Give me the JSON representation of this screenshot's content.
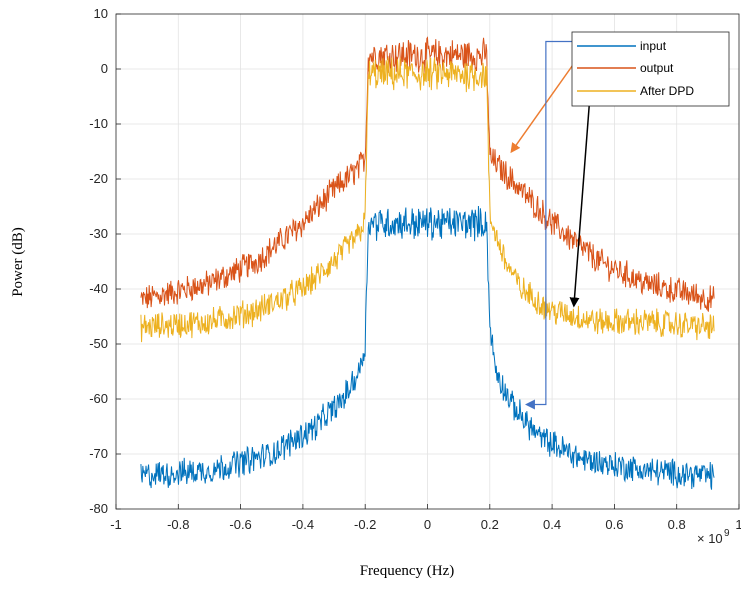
{
  "chart_data": {
    "type": "line",
    "title": "",
    "xlabel": "Frequency (Hz)",
    "ylabel": "Power (dB)",
    "x_exponent_label": "× 10",
    "x_exponent_power": "9",
    "xlim": [
      -1,
      1
    ],
    "ylim": [
      -80,
      10
    ],
    "xticks": [
      -1,
      -0.8,
      -0.6,
      -0.4,
      -0.2,
      0,
      0.2,
      0.4,
      0.6,
      0.8,
      1
    ],
    "xtick_labels": [
      "-1",
      "-0.8",
      "-0.6",
      "-0.4",
      "-0.2",
      "0",
      "0.2",
      "0.4",
      "0.6",
      "0.8",
      "1"
    ],
    "yticks": [
      10,
      0,
      -10,
      -20,
      -30,
      -40,
      -50,
      -60,
      -70,
      -80
    ],
    "ytick_labels": [
      "10",
      "0",
      "-10",
      "-20",
      "-30",
      "-40",
      "-50",
      "-60",
      "-70",
      "-80"
    ],
    "grid": true,
    "legend_position": "top-right",
    "x_range_data": [
      -0.92,
      0.92
    ],
    "band_edge": 0.19,
    "series": [
      {
        "name": "input",
        "color": "#0072BD",
        "noise_amplitude": 2.2,
        "in_band_level": -27,
        "points": [
          [
            -0.92,
            -74
          ],
          [
            -0.7,
            -73
          ],
          [
            -0.5,
            -70
          ],
          [
            -0.36,
            -65
          ],
          [
            -0.27,
            -60
          ],
          [
            -0.22,
            -55
          ],
          [
            -0.2,
            -50
          ],
          [
            -0.19,
            -28
          ],
          [
            0.19,
            -28
          ],
          [
            0.2,
            -47
          ],
          [
            0.22,
            -55
          ],
          [
            0.27,
            -61
          ],
          [
            0.36,
            -67
          ],
          [
            0.5,
            -71
          ],
          [
            0.7,
            -73
          ],
          [
            0.92,
            -74
          ]
        ]
      },
      {
        "name": "output",
        "color": "#D95319",
        "noise_amplitude": 2.2,
        "in_band_level": 2.5,
        "points": [
          [
            -0.92,
            -42
          ],
          [
            -0.7,
            -39
          ],
          [
            -0.55,
            -35
          ],
          [
            -0.4,
            -28
          ],
          [
            -0.3,
            -22
          ],
          [
            -0.22,
            -18
          ],
          [
            -0.2,
            -16
          ],
          [
            -0.19,
            2.5
          ],
          [
            0.19,
            2.5
          ],
          [
            0.2,
            -16
          ],
          [
            0.3,
            -22
          ],
          [
            0.4,
            -28
          ],
          [
            0.55,
            -35
          ],
          [
            0.7,
            -39
          ],
          [
            0.92,
            -42
          ]
        ]
      },
      {
        "name": "After DPD",
        "color": "#EDB120",
        "noise_amplitude": 2.2,
        "in_band_level": -1,
        "points": [
          [
            -0.92,
            -47
          ],
          [
            -0.7,
            -46
          ],
          [
            -0.55,
            -44
          ],
          [
            -0.4,
            -40
          ],
          [
            -0.3,
            -35
          ],
          [
            -0.22,
            -30
          ],
          [
            -0.2,
            -27
          ],
          [
            -0.19,
            -1
          ],
          [
            0.19,
            -1
          ],
          [
            0.2,
            -27
          ],
          [
            0.25,
            -35
          ],
          [
            0.3,
            -40
          ],
          [
            0.4,
            -44
          ],
          [
            0.55,
            -46
          ],
          [
            0.7,
            -46
          ],
          [
            0.92,
            -47
          ]
        ]
      }
    ],
    "annotations": [
      {
        "name": "output-arrow",
        "color": "#ED7D31",
        "from": [
          0.47,
          1
        ],
        "to": [
          0.27,
          -15
        ]
      },
      {
        "name": "after-dpd-arrow",
        "color": "#000000",
        "from": [
          0.52,
          -6
        ],
        "to": [
          0.47,
          -43
        ]
      },
      {
        "name": "input-bracket-arrow",
        "color": "#4472C4",
        "bracket_x": 0.38,
        "top_y": 5,
        "right_x": 0.48,
        "to": [
          0.3,
          -61
        ]
      }
    ]
  }
}
